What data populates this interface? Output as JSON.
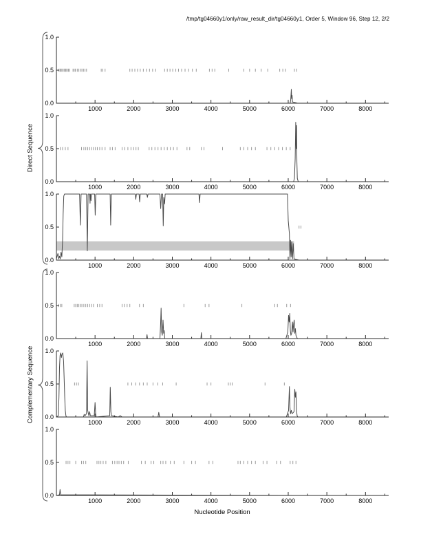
{
  "title": "/tmp/tg04660y1/only/raw_result_dir/tg04660y1, Order 5, Window 96, Step 12, 2/2",
  "group_labels": {
    "top": "Direct Sequence",
    "bottom": "Complementary Sequence"
  },
  "xlabel": "Nucleotide Position",
  "colors": {
    "axis": "#2a2a2a",
    "curve": "#4a4a4a",
    "match_tick": "#9a9a9a",
    "band_fill": "#c8c8c8",
    "brace": "#444444",
    "background": "#ffffff"
  },
  "chart_data": {
    "type": "line",
    "title": "/tmp/tg04660y1/only/raw_result_dir/tg04660y1, Order 5, Window 96, Step 12, 2/2",
    "xlabel": "Nucleotide Position",
    "xlim": [
      0,
      8600
    ],
    "ylim": [
      0,
      1
    ],
    "xticks": [
      1000,
      2000,
      3000,
      4000,
      5000,
      6000,
      7000,
      8000
    ],
    "x_minor_step": 500,
    "yticks": [
      0.0,
      0.5,
      1.0
    ],
    "grid": false,
    "legend": "none",
    "subplots": [
      {
        "name": "direct-order-plot-1",
        "group": "Direct Sequence",
        "match_tick_y": 0.5,
        "match_ticks_x": [
          60,
          90,
          110,
          140,
          170,
          200,
          230,
          250,
          280,
          310,
          340,
          430,
          460,
          490,
          540,
          580,
          620,
          660,
          700,
          740,
          780,
          1160,
          1200,
          1260,
          1900,
          1960,
          2030,
          2100,
          2170,
          2250,
          2330,
          2410,
          2490,
          2570,
          2800,
          2870,
          2940,
          3010,
          3090,
          3160,
          3240,
          3330,
          3420,
          3520,
          3620,
          3960,
          4030,
          4100,
          4460,
          4850,
          5000,
          5150,
          5300,
          5470,
          5780,
          5860,
          5930,
          6160,
          6220
        ],
        "line": [
          [
            0,
            0
          ],
          [
            6050,
            0
          ],
          [
            6065,
            0.05
          ],
          [
            6080,
            0.21
          ],
          [
            6090,
            0.07
          ],
          [
            6100,
            0.12
          ],
          [
            6110,
            0.02
          ],
          [
            6240,
            0
          ]
        ]
      },
      {
        "name": "direct-order-plot-2",
        "group": "Direct Sequence",
        "match_tick_y": 0.5,
        "match_ticks_x": [
          100,
          160,
          230,
          300,
          650,
          710,
          760,
          810,
          860,
          910,
          960,
          1010,
          1060,
          1120,
          1180,
          1260,
          1390,
          1450,
          1520,
          1700,
          1770,
          1850,
          1930,
          2000,
          2060,
          2120,
          2400,
          2470,
          2550,
          2630,
          2710,
          2790,
          2870,
          2950,
          3030,
          3120,
          3380,
          3450,
          3750,
          3820,
          4300,
          4760,
          4850,
          4950,
          5050,
          5150,
          5450,
          5550,
          5650,
          5750,
          5850,
          5950,
          6050
        ],
        "line": [
          [
            0,
            0
          ],
          [
            6140,
            0
          ],
          [
            6160,
            0.05
          ],
          [
            6180,
            0.35
          ],
          [
            6195,
            0.9
          ],
          [
            6205,
            0.5
          ],
          [
            6215,
            0.85
          ],
          [
            6225,
            0.3
          ],
          [
            6235,
            0.05
          ],
          [
            6260,
            0
          ]
        ]
      },
      {
        "name": "direct-similarity-map",
        "group": "Direct Sequence",
        "match_tick_y": 0.5,
        "match_ticks_x": [
          6280,
          6330
        ],
        "band": {
          "x0": 0,
          "x1": 6150,
          "y0": 0.145,
          "y1": 0.285
        },
        "line": [
          [
            0,
            0.02
          ],
          [
            40,
            0.1
          ],
          [
            60,
            0.02
          ],
          [
            80,
            0.06
          ],
          [
            100,
            0.02
          ],
          [
            120,
            0.12
          ],
          [
            140,
            0.05
          ],
          [
            160,
            0.3
          ],
          [
            175,
            0.7
          ],
          [
            190,
            0.97
          ],
          [
            210,
            1
          ],
          [
            600,
            1
          ],
          [
            620,
            0.53
          ],
          [
            640,
            1
          ],
          [
            780,
            1
          ],
          [
            800,
            0.14
          ],
          [
            820,
            1
          ],
          [
            860,
            1
          ],
          [
            870,
            0.86
          ],
          [
            880,
            1
          ],
          [
            895,
            0.9
          ],
          [
            905,
            1
          ],
          [
            990,
            1
          ],
          [
            1005,
            0.68
          ],
          [
            1020,
            1
          ],
          [
            1390,
            1
          ],
          [
            1405,
            0.53
          ],
          [
            1420,
            1
          ],
          [
            2040,
            1
          ],
          [
            2055,
            0.92
          ],
          [
            2070,
            1
          ],
          [
            2140,
            1
          ],
          [
            2155,
            0.88
          ],
          [
            2170,
            1
          ],
          [
            2340,
            1
          ],
          [
            2355,
            0.95
          ],
          [
            2370,
            1
          ],
          [
            2680,
            1
          ],
          [
            2700,
            0.78
          ],
          [
            2720,
            1
          ],
          [
            2750,
            1
          ],
          [
            2765,
            0.52
          ],
          [
            2780,
            0.95
          ],
          [
            2800,
            0.85
          ],
          [
            2815,
            1
          ],
          [
            3690,
            1
          ],
          [
            3705,
            0.87
          ],
          [
            3720,
            1
          ],
          [
            5980,
            1
          ],
          [
            6000,
            0.6
          ],
          [
            6030,
            0.4
          ],
          [
            6045,
            0.02
          ],
          [
            6060,
            0.3
          ],
          [
            6075,
            0.05
          ],
          [
            6090,
            0.28
          ],
          [
            6110,
            0.02
          ],
          [
            6130,
            0.25
          ],
          [
            6150,
            0.02
          ],
          [
            6200,
            0.01
          ],
          [
            6280,
            0
          ]
        ]
      },
      {
        "name": "complementary-order-plot-1",
        "group": "Complementary Sequence",
        "match_tick_y": 0.5,
        "match_ticks_x": [
          60,
          100,
          140,
          460,
          500,
          540,
          580,
          620,
          660,
          710,
          760,
          810,
          860,
          910,
          960,
          1060,
          1120,
          1180,
          1700,
          1760,
          1830,
          1900,
          2150,
          2250,
          3300,
          3850,
          3950,
          4800,
          5650,
          5720,
          5960,
          6060
        ],
        "line": [
          [
            0,
            0
          ],
          [
            2330,
            0
          ],
          [
            2345,
            0.06
          ],
          [
            2360,
            0
          ],
          [
            2680,
            0
          ],
          [
            2695,
            0.2
          ],
          [
            2710,
            0.46
          ],
          [
            2725,
            0.1
          ],
          [
            2740,
            0.05
          ],
          [
            2760,
            0.28
          ],
          [
            2775,
            0.08
          ],
          [
            2790,
            0.12
          ],
          [
            2805,
            0
          ],
          [
            3740,
            0
          ],
          [
            3752,
            0.09
          ],
          [
            3765,
            0
          ],
          [
            5940,
            0
          ],
          [
            5960,
            0.04
          ],
          [
            5990,
            0.1
          ],
          [
            6010,
            0.35
          ],
          [
            6025,
            0.25
          ],
          [
            6040,
            0.38
          ],
          [
            6055,
            0.12
          ],
          [
            6070,
            0.05
          ],
          [
            6090,
            0.08
          ],
          [
            6110,
            0.25
          ],
          [
            6125,
            0.1
          ],
          [
            6140,
            0.22
          ],
          [
            6155,
            0.28
          ],
          [
            6170,
            0.08
          ],
          [
            6185,
            0.15
          ],
          [
            6200,
            0.05
          ],
          [
            6220,
            0.02
          ],
          [
            6240,
            0
          ]
        ]
      },
      {
        "name": "complementary-order-plot-2",
        "group": "Complementary Sequence",
        "match_tick_y": 0.5,
        "match_ticks_x": [
          470,
          520,
          570,
          1850,
          1950,
          2050,
          2150,
          2250,
          2350,
          2500,
          2620,
          2750,
          3100,
          3900,
          4000,
          4450,
          4500,
          4550,
          5400,
          5900
        ],
        "line": [
          [
            0,
            0
          ],
          [
            50,
            0.02
          ],
          [
            65,
            0.3
          ],
          [
            80,
            0.75
          ],
          [
            95,
            0.93
          ],
          [
            110,
            0.97
          ],
          [
            130,
            0.9
          ],
          [
            145,
            0.95
          ],
          [
            165,
            0.97
          ],
          [
            185,
            0.85
          ],
          [
            200,
            0.6
          ],
          [
            215,
            0.3
          ],
          [
            230,
            0.1
          ],
          [
            245,
            0.02
          ],
          [
            260,
            0
          ],
          [
            700,
            0
          ],
          [
            720,
            0.04
          ],
          [
            740,
            0.02
          ],
          [
            780,
            0.05
          ],
          [
            795,
            0.85
          ],
          [
            810,
            0.1
          ],
          [
            825,
            0.06
          ],
          [
            840,
            0.02
          ],
          [
            860,
            0.08
          ],
          [
            880,
            0.02
          ],
          [
            980,
            0.02
          ],
          [
            1000,
            0.22
          ],
          [
            1015,
            0.05
          ],
          [
            1030,
            0
          ],
          [
            1380,
            0.02
          ],
          [
            1395,
            0.45
          ],
          [
            1410,
            0.08
          ],
          [
            1425,
            0.02
          ],
          [
            1600,
            0
          ],
          [
            1650,
            0.02
          ],
          [
            1700,
            0
          ],
          [
            2630,
            0
          ],
          [
            2650,
            0.07
          ],
          [
            2670,
            0
          ],
          [
            5950,
            0
          ],
          [
            5980,
            0.05
          ],
          [
            6010,
            0.1
          ],
          [
            6030,
            0.46
          ],
          [
            6045,
            0.15
          ],
          [
            6060,
            0.05
          ],
          [
            6080,
            0.1
          ],
          [
            6100,
            0.05
          ],
          [
            6150,
            0.08
          ],
          [
            6170,
            0.42
          ],
          [
            6185,
            0.3
          ],
          [
            6200,
            0.38
          ],
          [
            6215,
            0.1
          ],
          [
            6230,
            0.02
          ],
          [
            6250,
            0
          ]
        ]
      },
      {
        "name": "complementary-order-plot-3",
        "group": "Complementary Sequence",
        "match_tick_y": 0.5,
        "match_ticks_x": [
          250,
          300,
          350,
          500,
          650,
          700,
          760,
          1050,
          1100,
          1150,
          1210,
          1280,
          1450,
          1510,
          1570,
          1620,
          1680,
          1740,
          1860,
          2200,
          2300,
          2450,
          2520,
          2700,
          2760,
          2830,
          2950,
          3050,
          3300,
          3500,
          3600,
          3950,
          4050,
          4700,
          4760,
          4850,
          4950,
          5050,
          5150,
          5350,
          5450,
          5700,
          5800,
          6050,
          6120,
          6200
        ],
        "line": [
          [
            0,
            0
          ],
          [
            80,
            0.01
          ],
          [
            95,
            0.09
          ],
          [
            110,
            0.01
          ],
          [
            6240,
            0
          ]
        ]
      }
    ]
  }
}
